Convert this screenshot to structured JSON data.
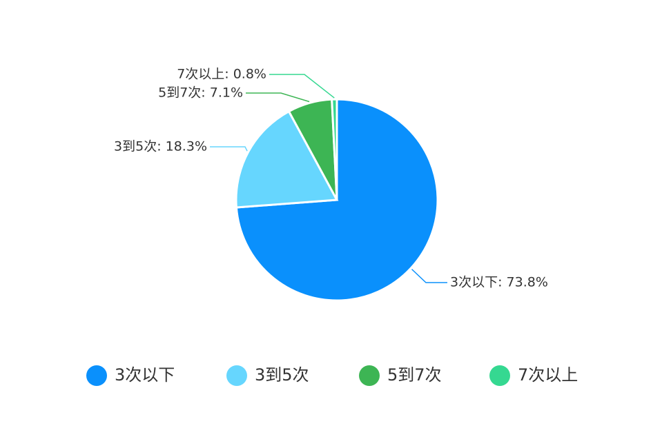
{
  "chart_data": {
    "type": "pie",
    "categories": [
      "3次以下",
      "3到5次",
      "5到7次",
      "7次以上"
    ],
    "values": [
      73.8,
      18.3,
      7.1,
      0.8
    ],
    "value_labels": [
      "3次以下: 73.8%",
      "3到5次: 18.3%",
      "5到7次: 7.1%",
      "7次以上: 0.8%"
    ],
    "colors": [
      "#0a90fc",
      "#66d6fe",
      "#3db554",
      "#35d891"
    ],
    "legend": "bottom"
  }
}
